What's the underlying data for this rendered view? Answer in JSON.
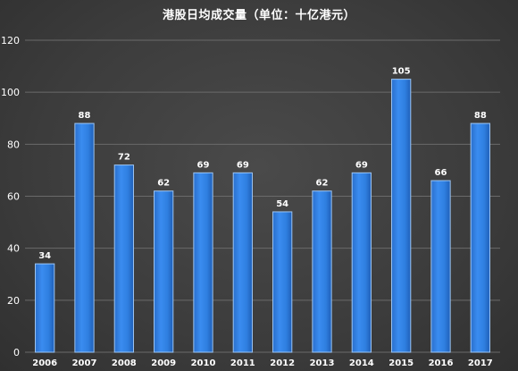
{
  "chart_data": {
    "type": "bar",
    "title": "港股日均成交量（单位：十亿港元）",
    "xlabel": "",
    "ylabel": "",
    "categories": [
      "2006",
      "2007",
      "2008",
      "2009",
      "2010",
      "2011",
      "2012",
      "2013",
      "2014",
      "2015",
      "2016",
      "2017"
    ],
    "values": [
      34,
      88,
      72,
      62,
      69,
      69,
      54,
      62,
      69,
      105,
      66,
      88
    ],
    "ylim": [
      0,
      120
    ],
    "yticks": [
      0,
      20,
      40,
      60,
      80,
      100,
      120
    ],
    "grid": true,
    "legend": "none",
    "bar_color": "#2f7fe0",
    "bar_edge_color": "#9cc6f5",
    "background_color": "#3f3f3f",
    "gridline_color": "#6a6a6a",
    "text_color": "#ffffff"
  }
}
